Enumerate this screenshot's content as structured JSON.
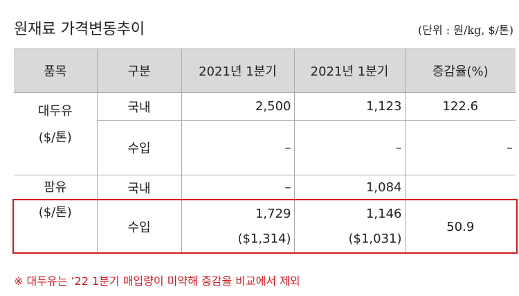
{
  "header": {
    "title": "원재료 가격변동추이",
    "unit": "(단위 : 원/kg, $/톤)"
  },
  "table": {
    "columns": [
      "품목",
      "구분",
      "2021년 1분기",
      "2021년 1분기",
      "증감율(%)"
    ],
    "rows": [
      {
        "item": "대두유",
        "item_unit": "($/톤)",
        "type": "국내",
        "period_a": "2,500",
        "period_b": "1,123",
        "change": "122.6"
      },
      {
        "type": "수입",
        "period_a": "–",
        "period_b": "–",
        "change": "–"
      },
      {
        "item": "팜유",
        "item_unit": "($/톤)",
        "type": "국내",
        "period_a": "–",
        "period_b": "1,084"
      },
      {
        "type": "수입",
        "period_a": "1,729",
        "period_a_usd": "($1,314)",
        "period_b": "1,146",
        "period_b_usd": "($1,031)",
        "change": "50.9"
      }
    ]
  },
  "footnote": "※ 대두유는 ’22 1분기 매입량이 미약해 증감율 비교에서 제외"
}
